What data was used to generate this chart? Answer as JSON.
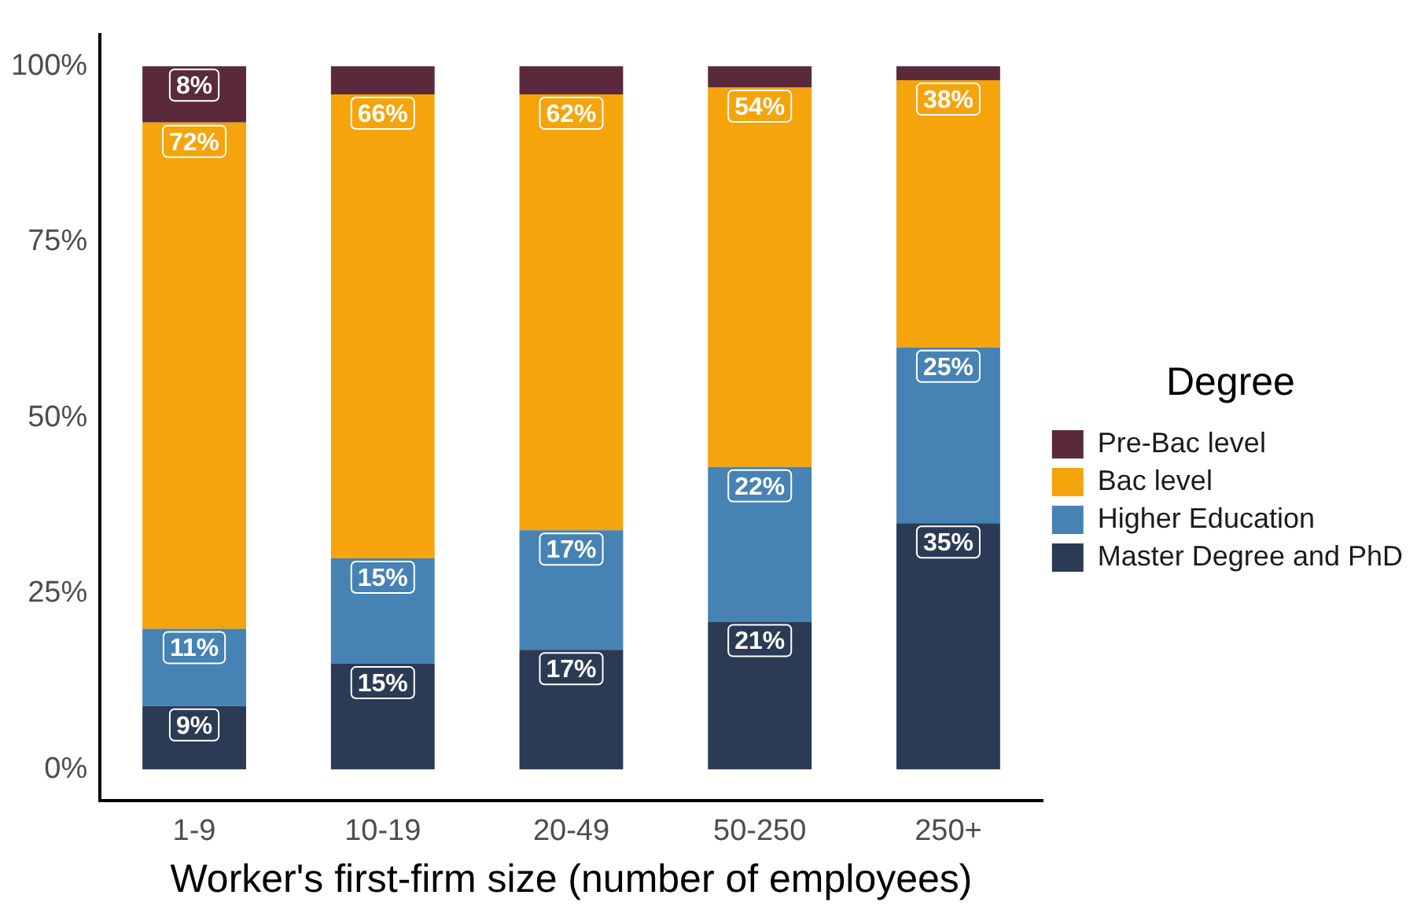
{
  "chart_data": {
    "type": "bar",
    "stacked": true,
    "xlabel": "Worker's first-firm size (number of employees)",
    "legend_title": "Degree",
    "legend": "right",
    "grid": false,
    "categories": [
      "1-9",
      "10-19",
      "20-49",
      "50-250",
      "250+"
    ],
    "ylim": [
      -4.5,
      104.5
    ],
    "yticks": [
      {
        "value": 0,
        "label": "0%"
      },
      {
        "value": 25,
        "label": "25%"
      },
      {
        "value": 50,
        "label": "50%"
      },
      {
        "value": 75,
        "label": "75%"
      },
      {
        "value": 100,
        "label": "100%"
      }
    ],
    "series": [
      {
        "name": "Master Degree and PhD",
        "color": "#2b3a55",
        "values": [
          9,
          15,
          17,
          21,
          35
        ],
        "value_labels": [
          "9%",
          "15%",
          "17%",
          "21%",
          "35%"
        ]
      },
      {
        "name": "Higher Education",
        "color": "#4682b4",
        "values": [
          11,
          15,
          17,
          22,
          25
        ],
        "value_labels": [
          "11%",
          "15%",
          "17%",
          "22%",
          "25%"
        ]
      },
      {
        "name": "Bac level",
        "color": "#f5a40c",
        "values": [
          72,
          66,
          62,
          54,
          38
        ],
        "value_labels": [
          "72%",
          "66%",
          "62%",
          "54%",
          "38%"
        ]
      },
      {
        "name": "Pre-Bac level",
        "color": "#5a2a3c",
        "values": [
          8,
          4,
          4,
          3,
          2
        ],
        "value_labels": [
          "8%",
          null,
          null,
          null,
          null
        ]
      }
    ]
  }
}
